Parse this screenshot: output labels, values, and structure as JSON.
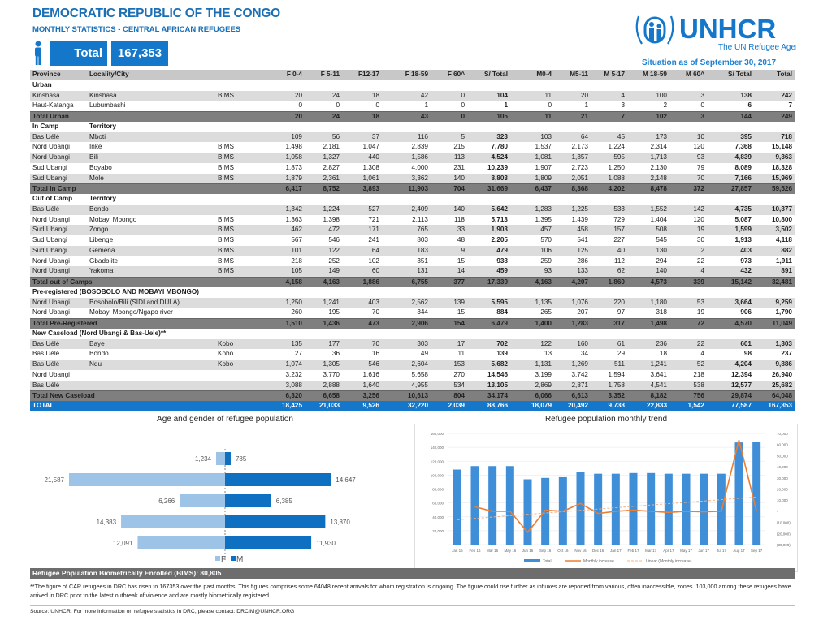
{
  "header": {
    "title": "DEMOCRATIC REPUBLIC OF THE  CONGO",
    "subtitle": "MONTHLY STATISTICS - CENTRAL AFRICAN REFUGEES",
    "total_label": "Total",
    "total_value": "167,353",
    "logo_text": "UNHCR",
    "logo_tagline": "The UN Refugee Agency",
    "situation": "Situation as of September 30,  2017"
  },
  "colors": {
    "accent": "#1477c9",
    "title": "#1a6fb5",
    "female": "#9dc3e6",
    "male": "#0f6fc0",
    "trend_line": "#ed7d31"
  },
  "table": {
    "columns": [
      "Province",
      "Locality/City",
      "",
      "F 0-4",
      "F 5-11",
      "F12-17",
      "F 18-59",
      "F 60^",
      "S/ Total",
      "M0-4",
      "M5-11",
      "M 5-17",
      "M 18-59",
      "M 60^",
      "S/ Total",
      "Total"
    ],
    "rows": [
      {
        "t": "sec",
        "c": [
          "Urban",
          "",
          "",
          "",
          "",
          "",
          "",
          "",
          "",
          "",
          "",
          "",
          "",
          "",
          "",
          ""
        ]
      },
      {
        "t": "g",
        "c": [
          "Kinshasa",
          "Kinshasa",
          "BIMS",
          "20",
          "24",
          "18",
          "42",
          "0",
          "104",
          "11",
          "20",
          "4",
          "100",
          "3",
          "138",
          "242"
        ]
      },
      {
        "t": "w",
        "c": [
          "Haut-Katanga",
          "Lubumbashi",
          "",
          "0",
          "0",
          "0",
          "1",
          "0",
          "1",
          "0",
          "1",
          "3",
          "2",
          "0",
          "6",
          "7"
        ]
      },
      {
        "t": "tot",
        "c": [
          "Total Urban",
          "",
          "",
          "20",
          "24",
          "18",
          "43",
          "0",
          "105",
          "11",
          "21",
          "7",
          "102",
          "3",
          "144",
          "249"
        ]
      },
      {
        "t": "sec",
        "c": [
          "In Camp",
          "Territory",
          "",
          "",
          "",
          "",
          "",
          "",
          "",
          "",
          "",
          "",
          "",
          "",
          "",
          ""
        ]
      },
      {
        "t": "g",
        "c": [
          "Bas Uélé",
          "Mboti",
          "",
          "109",
          "56",
          "37",
          "116",
          "5",
          "323",
          "103",
          "64",
          "45",
          "173",
          "10",
          "395",
          "718"
        ]
      },
      {
        "t": "w",
        "c": [
          "Nord Ubangi",
          "Inke",
          "BIMS",
          "1,498",
          "2,181",
          "1,047",
          "2,839",
          "215",
          "7,780",
          "1,537",
          "2,173",
          "1,224",
          "2,314",
          "120",
          "7,368",
          "15,148"
        ]
      },
      {
        "t": "g",
        "c": [
          "Nord Ubangi",
          "Bili",
          "BIMS",
          "1,058",
          "1,327",
          "440",
          "1,586",
          "113",
          "4,524",
          "1,081",
          "1,357",
          "595",
          "1,713",
          "93",
          "4,839",
          "9,363"
        ]
      },
      {
        "t": "w",
        "c": [
          "Sud Ubangi",
          "Boyabo",
          "BIMS",
          "1,873",
          "2,827",
          "1,308",
          "4,000",
          "231",
          "10,239",
          "1,907",
          "2,723",
          "1,250",
          "2,130",
          "79",
          "8,089",
          "18,328"
        ]
      },
      {
        "t": "g",
        "c": [
          "Sud Ubangi",
          "Mole",
          "BIMS",
          "1,879",
          "2,361",
          "1,061",
          "3,362",
          "140",
          "8,803",
          "1,809",
          "2,051",
          "1,088",
          "2,148",
          "70",
          "7,166",
          "15,969"
        ]
      },
      {
        "t": "tot",
        "c": [
          "Total  In Camp",
          "",
          "",
          "6,417",
          "8,752",
          "3,893",
          "11,903",
          "704",
          "31,669",
          "6,437",
          "8,368",
          "4,202",
          "8,478",
          "372",
          "27,857",
          "59,526"
        ]
      },
      {
        "t": "sec",
        "c": [
          "Out of Camp",
          "Territory",
          "",
          "",
          "",
          "",
          "",
          "",
          "",
          "",
          "",
          "",
          "",
          "",
          "",
          ""
        ]
      },
      {
        "t": "g",
        "c": [
          "Bas Uélé",
          "Bondo",
          "",
          "1,342",
          "1,224",
          "527",
          "2,409",
          "140",
          "5,642",
          "1,283",
          "1,225",
          "533",
          "1,552",
          "142",
          "4,735",
          "10,377"
        ]
      },
      {
        "t": "w",
        "c": [
          "Nord Ubangi",
          "Mobayi Mbongo",
          "BIMS",
          "1,363",
          "1,398",
          "721",
          "2,113",
          "118",
          "5,713",
          "1,395",
          "1,439",
          "729",
          "1,404",
          "120",
          "5,087",
          "10,800"
        ]
      },
      {
        "t": "g",
        "c": [
          "Sud Ubangi",
          "Zongo",
          "BIMS",
          "462",
          "472",
          "171",
          "765",
          "33",
          "1,903",
          "457",
          "458",
          "157",
          "508",
          "19",
          "1,599",
          "3,502"
        ]
      },
      {
        "t": "w",
        "c": [
          "Sud Ubangi",
          "Libenge",
          "BIMS",
          "567",
          "546",
          "241",
          "803",
          "48",
          "2,205",
          "570",
          "541",
          "227",
          "545",
          "30",
          "1,913",
          "4,118"
        ]
      },
      {
        "t": "g",
        "c": [
          "Sud Ubangi",
          "Gemena",
          "BIMS",
          "101",
          "122",
          "64",
          "183",
          "9",
          "479",
          "106",
          "125",
          "40",
          "130",
          "2",
          "403",
          "882"
        ]
      },
      {
        "t": "w",
        "c": [
          "Nord Ubangi",
          "Gbadolite",
          "BIMS",
          "218",
          "252",
          "102",
          "351",
          "15",
          "938",
          "259",
          "286",
          "112",
          "294",
          "22",
          "973",
          "1,911"
        ]
      },
      {
        "t": "g",
        "c": [
          "Nord Ubangi",
          "Yakoma",
          "BIMS",
          "105",
          "149",
          "60",
          "131",
          "14",
          "459",
          "93",
          "133",
          "62",
          "140",
          "4",
          "432",
          "891"
        ]
      },
      {
        "t": "tot",
        "c": [
          "Total out of Camps",
          "",
          "",
          "4,158",
          "4,163",
          "1,886",
          "6,755",
          "377",
          "17,339",
          "4,163",
          "4,207",
          "1,860",
          "4,573",
          "339",
          "15,142",
          "32,481"
        ]
      },
      {
        "t": "sec",
        "c": [
          "Pre-registered (BOSOBOLO AND MOBAYI MBONGO)",
          "",
          "",
          "",
          "",
          "",
          "",
          "",
          "",
          "",
          "",
          "",
          "",
          "",
          "",
          ""
        ]
      },
      {
        "t": "g",
        "c": [
          "Nord Ubangi",
          "Bosobolo/Bili (SIDI and DULA)",
          "",
          "1,250",
          "1,241",
          "403",
          "2,562",
          "139",
          "5,595",
          "1,135",
          "1,076",
          "220",
          "1,180",
          "53",
          "3,664",
          "9,259"
        ]
      },
      {
        "t": "w",
        "c": [
          "Nord Ubangi",
          "Mobayi Mbongo/Ngapo river",
          "",
          "260",
          "195",
          "70",
          "344",
          "15",
          "884",
          "265",
          "207",
          "97",
          "318",
          "19",
          "906",
          "1,790"
        ]
      },
      {
        "t": "tot",
        "c": [
          "Total Pre-Registered",
          "",
          "",
          "1,510",
          "1,436",
          "473",
          "2,906",
          "154",
          "6,479",
          "1,400",
          "1,283",
          "317",
          "1,498",
          "72",
          "4,570",
          "11,049"
        ]
      },
      {
        "t": "sec",
        "c": [
          "New Caseload (Nord Ubangi & Bas-Uele)**",
          "",
          "",
          "",
          "",
          "",
          "",
          "",
          "",
          "",
          "",
          "",
          "",
          "",
          "",
          ""
        ]
      },
      {
        "t": "g",
        "c": [
          "Bas Uélé",
          "Baye",
          "Kobo",
          "135",
          "177",
          "70",
          "303",
          "17",
          "702",
          "122",
          "160",
          "61",
          "236",
          "22",
          "601",
          "1,303"
        ]
      },
      {
        "t": "w",
        "c": [
          "Bas Uélé",
          "Bondo",
          "Kobo",
          "27",
          "36",
          "16",
          "49",
          "11",
          "139",
          "13",
          "34",
          "29",
          "18",
          "4",
          "98",
          "237"
        ]
      },
      {
        "t": "g",
        "c": [
          "Bas Uélé",
          "Ndu",
          "Kobo",
          "1,074",
          "1,305",
          "546",
          "2,604",
          "153",
          "5,682",
          "1,131",
          "1,269",
          "511",
          "1,241",
          "52",
          "4,204",
          "9,886"
        ]
      },
      {
        "t": "w",
        "c": [
          "Nord Ubangi",
          "",
          "",
          "3,232",
          "3,770",
          "1,616",
          "5,658",
          "270",
          "14,546",
          "3,199",
          "3,742",
          "1,594",
          "3,641",
          "218",
          "12,394",
          "26,940"
        ]
      },
      {
        "t": "g",
        "c": [
          "Bas Uélé",
          "",
          "",
          "3,088",
          "2,888",
          "1,640",
          "4,955",
          "534",
          "13,105",
          "2,869",
          "2,871",
          "1,758",
          "4,541",
          "538",
          "12,577",
          "25,682"
        ]
      },
      {
        "t": "tot",
        "c": [
          "Total New Caseload",
          "",
          "",
          "6,320",
          "6,658",
          "3,256",
          "10,613",
          "804",
          "34,174",
          "6,066",
          "6,613",
          "3,352",
          "8,182",
          "756",
          "29,874",
          "64,048"
        ]
      },
      {
        "t": "grand",
        "c": [
          "TOTAL",
          "",
          "",
          "18,425",
          "21,033",
          "9,526",
          "32,220",
          "2,039",
          "88,766",
          "18,079",
          "20,492",
          "9,738",
          "22,833",
          "1,542",
          "77,587",
          "167,353"
        ]
      }
    ]
  },
  "chart_data": [
    {
      "type": "bar",
      "orientation": "horizontal-pyramid",
      "title": "Age and gender of refugee population",
      "series": [
        {
          "name": "F",
          "values": [
            1234,
            21587,
            6266,
            14383,
            12091
          ]
        },
        {
          "name": "M",
          "values": [
            785,
            14647,
            6385,
            13870,
            11930
          ]
        }
      ],
      "data_labels": {
        "F": [
          "1,234",
          "21,587",
          "6,266",
          "14,383",
          "12,091"
        ],
        "M": [
          "785",
          "14,647",
          "6,385",
          "13,870",
          "11,930"
        ]
      },
      "legend": "bottom"
    },
    {
      "type": "bar+line",
      "title": "Refugee population monthly trend",
      "categories": [
        "Jan 16",
        "Feb 16",
        "Mar 16",
        "May 16",
        "Jun 16",
        "Sep 16",
        "Oct 16",
        "Nov 16",
        "Dec 16",
        "Jan 17",
        "Feb 17",
        "Mar 17",
        "Apr 17",
        "May 17",
        "Jun 17",
        "Jul 17",
        "Aug 17",
        "Sep 17"
      ],
      "series": [
        {
          "name": "Total",
          "type": "bar",
          "axis": "left",
          "values": [
            108000,
            113000,
            113000,
            113000,
            94000,
            96000,
            97000,
            104000,
            102000,
            102000,
            103000,
            103000,
            102000,
            102000,
            102000,
            102000,
            147000,
            148000
          ]
        },
        {
          "name": "Monthly increase",
          "type": "line",
          "axis": "right",
          "values": [
            null,
            4000,
            0,
            0,
            -19000,
            1000,
            0,
            7000,
            -2000,
            0,
            1000,
            0,
            -1000,
            0,
            -500,
            0,
            64000,
            0
          ]
        },
        {
          "name": "Linear (Monthly increase)",
          "type": "trendline",
          "axis": "right"
        }
      ],
      "y_left": {
        "range": [
          0,
          160000
        ],
        "ticks": [
          "-",
          "20,000",
          "40,000",
          "60,000",
          "80,000",
          "100,000",
          "120,000",
          "140,000",
          "160,000"
        ]
      },
      "y_right": {
        "range": [
          -30000,
          70000
        ],
        "ticks": [
          "(30,000)",
          "(20,000)",
          "(10,000)",
          "-",
          "10,000",
          "20,000",
          "30,000",
          "40,000",
          "50,000",
          "60,000",
          "70,000"
        ]
      },
      "grid": true,
      "legend": "bottom"
    }
  ],
  "footer": {
    "bims": "Refugee Population Biometrically Enrolled (BIMS): 80,805",
    "note": "**The figure of CAR refugees in DRC has risen to 167353 over the past months. This figures comprises some 64048 recent arrivals for whom registration is ongoing. The figure could rise further as influxes are reported from various, often inaccessible, zones. 103,000 among these refugees have arrived in DRC prior to the latest outbreak of violence and are mostly biometrically registered.",
    "source": "Source: UNHCR. For more information on refugee statistics in DRC, please contact: DRCIM@UNHCR.ORG"
  }
}
